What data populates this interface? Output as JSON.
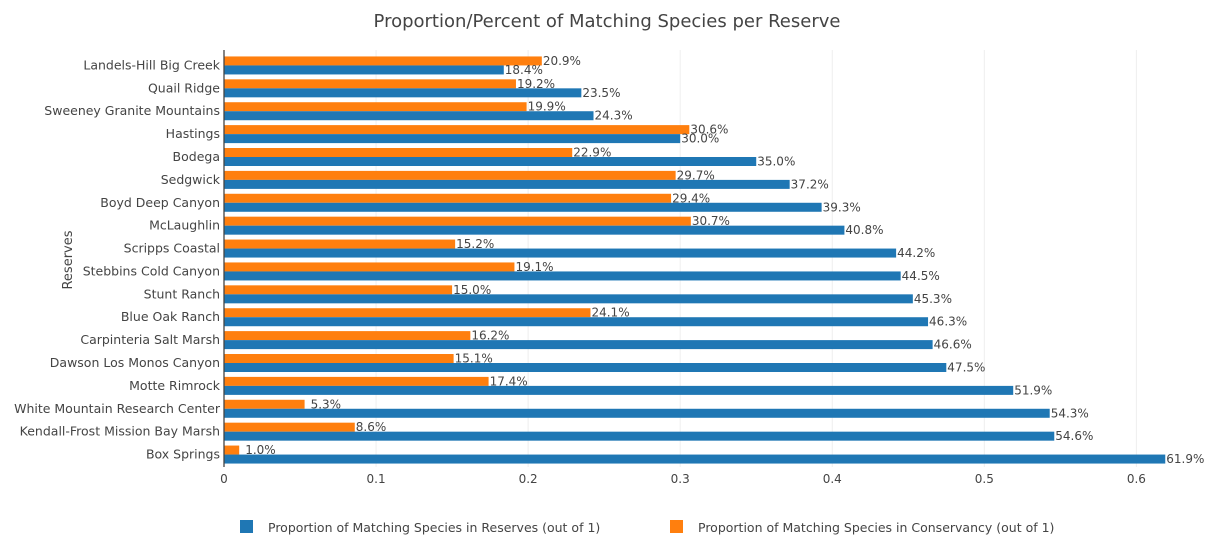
{
  "colors": {
    "reserves": "#1f77b4",
    "conservancy": "#ff7f0e"
  },
  "chart_data": {
    "type": "bar",
    "orientation": "horizontal",
    "title": "Proportion/Percent of Matching Species per Reserve",
    "ylabel": "Reserves",
    "xlabel": "",
    "xlim": [
      0,
      0.63
    ],
    "xticks": [
      0,
      0.1,
      0.2,
      0.3,
      0.4,
      0.5,
      0.6
    ],
    "xtick_labels": [
      "0",
      "0.1",
      "0.2",
      "0.3",
      "0.4",
      "0.5",
      "0.6"
    ],
    "grid": true,
    "legend_position": "bottom",
    "categories": [
      "Landels-Hill Big Creek",
      "Quail Ridge",
      "Sweeney Granite Mountains",
      "Hastings",
      "Bodega",
      "Sedgwick",
      "Boyd Deep Canyon",
      "McLaughlin",
      "Scripps Coastal",
      "Stebbins Cold Canyon",
      "Stunt Ranch",
      "Blue Oak Ranch",
      "Carpinteria Salt Marsh",
      "Dawson Los Monos Canyon",
      "Motte Rimrock",
      "White Mountain Research Center",
      "Kendall-Frost Mission Bay Marsh",
      "Box Springs"
    ],
    "series": [
      {
        "name": "Proportion of Matching Species in Reserves (out of 1)",
        "values": [
          0.184,
          0.235,
          0.243,
          0.3,
          0.35,
          0.372,
          0.393,
          0.408,
          0.442,
          0.445,
          0.453,
          0.463,
          0.466,
          0.475,
          0.519,
          0.543,
          0.546,
          0.619
        ],
        "labels": [
          "18.4%",
          "23.5%",
          "24.3%",
          "30.0%",
          "35.0%",
          "37.2%",
          "39.3%",
          "40.8%",
          "44.2%",
          "44.5%",
          "45.3%",
          "46.3%",
          "46.6%",
          "47.5%",
          "51.9%",
          "54.3%",
          "54.6%",
          "61.9%"
        ]
      },
      {
        "name": "Proportion of Matching Species in Conservancy (out of 1)",
        "values": [
          0.209,
          0.192,
          0.199,
          0.306,
          0.229,
          0.297,
          0.294,
          0.307,
          0.152,
          0.191,
          0.15,
          0.241,
          0.162,
          0.151,
          0.174,
          0.053,
          0.086,
          0.01
        ],
        "labels": [
          "20.9%",
          "19.2%",
          "19.9%",
          "30.6%",
          "22.9%",
          "29.7%",
          "29.4%",
          "30.7%",
          "15.2%",
          "19.1%",
          "15.0%",
          "24.1%",
          "16.2%",
          "15.1%",
          "17.4%",
          "5.3%",
          "8.6%",
          "1.0%"
        ]
      }
    ]
  }
}
